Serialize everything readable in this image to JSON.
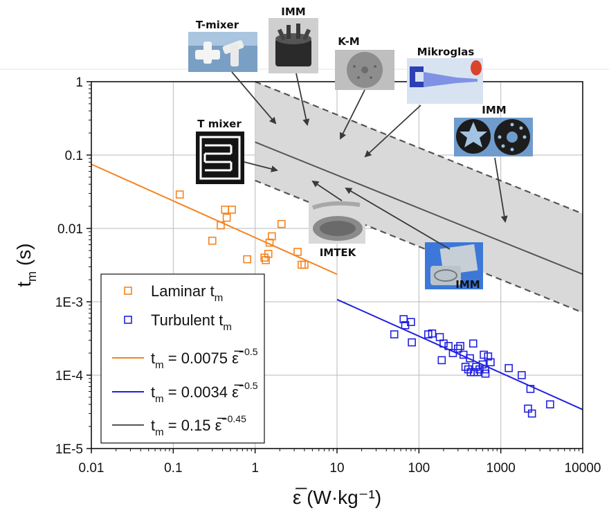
{
  "chart_data": {
    "type": "scatter",
    "xscale": "log",
    "yscale": "log",
    "xlim": [
      0.01,
      10000
    ],
    "ylim": [
      1e-05,
      1
    ],
    "x_ticks": [
      "0.01",
      "0.1",
      "1",
      "10",
      "100",
      "1000",
      "10000"
    ],
    "y_ticks": [
      "1E-5",
      "1E-4",
      "1E-3",
      "0.01",
      "0.1",
      "1"
    ],
    "xlabel": "ε̅ (W·kg⁻¹)",
    "ylabel": "t",
    "ylabel_sub": "m",
    "ylabel_unit": " (s)",
    "grid": true,
    "legend_position": "bottom-left",
    "series": [
      {
        "name": "Laminar t",
        "name_sub": "m",
        "color": "#f5831f",
        "marker": "square",
        "points": [
          [
            0.12,
            0.029
          ],
          [
            0.3,
            0.0068
          ],
          [
            0.38,
            0.011
          ],
          [
            0.43,
            0.018
          ],
          [
            0.45,
            0.014
          ],
          [
            0.52,
            0.018
          ],
          [
            0.8,
            0.0038
          ],
          [
            1.3,
            0.004
          ],
          [
            1.35,
            0.0037
          ],
          [
            1.45,
            0.0045
          ],
          [
            1.5,
            0.0064
          ],
          [
            1.6,
            0.0078
          ],
          [
            2.1,
            0.0115
          ],
          [
            3.3,
            0.0048
          ],
          [
            3.7,
            0.0032
          ],
          [
            4.0,
            0.0032
          ]
        ]
      },
      {
        "name": "Turbulent t",
        "name_sub": "m",
        "color": "#2020e0",
        "marker": "square",
        "points": [
          [
            50,
            0.00036
          ],
          [
            65,
            0.00058
          ],
          [
            68,
            0.00048
          ],
          [
            80,
            0.00053
          ],
          [
            82,
            0.00028
          ],
          [
            130,
            0.00036
          ],
          [
            145,
            0.00037
          ],
          [
            180,
            0.00033
          ],
          [
            190,
            0.00016
          ],
          [
            200,
            0.00027
          ],
          [
            230,
            0.00025
          ],
          [
            260,
            0.0002
          ],
          [
            300,
            0.00023
          ],
          [
            320,
            0.00025
          ],
          [
            350,
            0.00019
          ],
          [
            370,
            0.00013
          ],
          [
            400,
            0.00012
          ],
          [
            420,
            0.00017
          ],
          [
            430,
            0.00011
          ],
          [
            460,
            0.00027
          ],
          [
            470,
            0.00011
          ],
          [
            500,
            0.00013
          ],
          [
            520,
            0.00011
          ],
          [
            550,
            0.00012
          ],
          [
            600,
            0.00014
          ],
          [
            620,
            0.00019
          ],
          [
            640,
            0.00012
          ],
          [
            650,
            0.000105
          ],
          [
            700,
            0.00018
          ],
          [
            750,
            0.00015
          ],
          [
            1250,
            0.000125
          ],
          [
            1800,
            0.0001
          ],
          [
            2150,
            3.5e-05
          ],
          [
            2300,
            6.5e-05
          ],
          [
            2400,
            3e-05
          ],
          [
            4000,
            4e-05
          ]
        ]
      }
    ],
    "fit_lines": [
      {
        "name": "t",
        "name_sub": "m",
        "eq": " = 0.0075 ε̅",
        "exp": "−0.5",
        "coef": 0.0075,
        "exponent": -0.5,
        "x_range": [
          0.01,
          10
        ],
        "color": "#f5831f"
      },
      {
        "name": "t",
        "name_sub": "m",
        "eq": " = 0.0034 ε̅",
        "exp": "−0.5",
        "coef": 0.0034,
        "exponent": -0.5,
        "x_range": [
          10,
          10000
        ],
        "color": "#2020e0"
      },
      {
        "name": "t",
        "name_sub": "m",
        "eq": " = 0.15 ε̅",
        "exp": "−0.45",
        "coef": 0.15,
        "exponent": -0.45,
        "x_range": [
          1,
          10000
        ],
        "color": "#555555"
      }
    ],
    "band": {
      "coef_upper": 1.0,
      "coef_lower": 0.045,
      "exponent": -0.45,
      "x_range": [
        1,
        10000
      ],
      "fill": "#d9d9d9",
      "edge_color": "#555555",
      "edge_style": "dashed"
    },
    "annotations": [
      {
        "label": "T-mixer"
      },
      {
        "label": "IMM"
      },
      {
        "label": "K-M"
      },
      {
        "label": "Mikroglas"
      },
      {
        "label": "IMM"
      },
      {
        "label": "T mixer"
      },
      {
        "label": "IMTEK"
      },
      {
        "label": "IMM"
      }
    ]
  }
}
